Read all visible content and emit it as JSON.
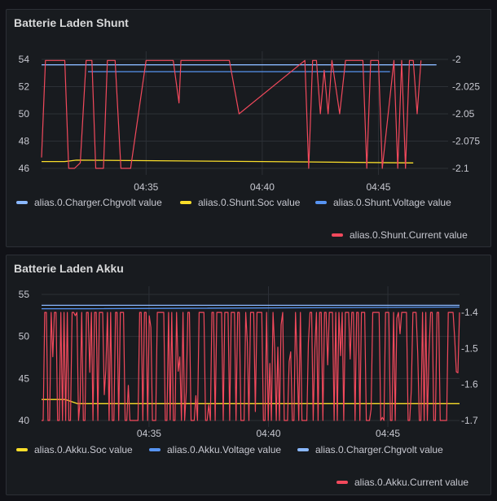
{
  "colors": {
    "light_blue": "#8ab8ff",
    "yellow": "#fade2a",
    "blue": "#5794f2",
    "red": "#f2495c",
    "grid": "#2c3036"
  },
  "panels": [
    {
      "title": "Batterie Laden Shunt",
      "legend": [
        {
          "label": "alias.0.Charger.Chgvolt value",
          "color": "#8ab8ff"
        },
        {
          "label": "alias.0.Shunt.Soc value",
          "color": "#fade2a"
        },
        {
          "label": "alias.0.Shunt.Voltage value",
          "color": "#5794f2"
        },
        {
          "label": "alias.0.Shunt.Current value",
          "color": "#f2495c"
        }
      ]
    },
    {
      "title": "Batterie Laden Akku",
      "legend": [
        {
          "label": "alias.0.Akku.Soc value",
          "color": "#fade2a"
        },
        {
          "label": "alias.0.Akku.Voltage value",
          "color": "#5794f2"
        },
        {
          "label": "alias.0.Charger.Chgvolt value",
          "color": "#8ab8ff"
        },
        {
          "label": "alias.0.Akku.Current value",
          "color": "#f2495c"
        }
      ]
    }
  ],
  "chart_data": [
    {
      "type": "line",
      "title": "Batterie Laden Shunt",
      "x_ticks": [
        "04:35",
        "04:40",
        "04:45"
      ],
      "x_range": [
        "04:30:30",
        "04:48:00"
      ],
      "y_left_ticks": [
        "54",
        "52",
        "50",
        "48",
        "46"
      ],
      "y_left_range": [
        46,
        54
      ],
      "y_right_ticks": [
        "-2",
        "-2.025",
        "-2.05",
        "-2.075",
        "-2.1"
      ],
      "y_right_range": [
        -2.1,
        -2
      ],
      "series": [
        {
          "name": "alias.0.Charger.Chgvolt value",
          "axis": "left",
          "x": [
            "04:30:30",
            "04:46:30",
            "04:47:30"
          ],
          "y": [
            53.6,
            53.6,
            53.6
          ]
        },
        {
          "name": "alias.0.Shunt.Soc value",
          "axis": "left",
          "x": [
            "04:30:30",
            "04:31:30",
            "04:32:00",
            "04:40:00",
            "04:46:30"
          ],
          "y": [
            46.5,
            46.5,
            46.6,
            46.5,
            46.4
          ]
        },
        {
          "name": "alias.0.Shunt.Voltage value",
          "axis": "left",
          "x": [
            "04:32:30",
            "04:36:00",
            "04:40:00",
            "04:43:00",
            "04:45:30"
          ],
          "y": [
            53.1,
            53.1,
            53.1,
            53.1,
            53.1
          ]
        },
        {
          "name": "alias.0.Shunt.Current value",
          "axis": "right",
          "x": [
            "04:30:30",
            "04:30:40",
            "04:31:30",
            "04:31:40",
            "04:31:55",
            "04:32:10",
            "04:32:25",
            "04:32:40",
            "04:32:50",
            "04:33:10",
            "04:33:20",
            "04:33:40",
            "04:33:55",
            "04:34:20",
            "04:35:00",
            "04:35:30",
            "04:36:10",
            "04:36:25",
            "04:36:30",
            "04:37:30",
            "04:37:40",
            "04:38:35",
            "04:39:00",
            "04:41:50",
            "04:42:00",
            "04:42:10",
            "04:42:20",
            "04:42:30",
            "04:42:40",
            "04:42:50",
            "04:43:00",
            "04:43:20",
            "04:43:35",
            "04:43:50",
            "04:44:20",
            "04:44:30",
            "04:44:40",
            "04:45:00",
            "04:45:10",
            "04:45:40",
            "04:45:50",
            "04:46:00",
            "04:46:10",
            "04:46:20",
            "04:46:30",
            "04:46:40",
            "04:46:50"
          ],
          "y": [
            -2.09,
            -2.001,
            -2.001,
            -2.1,
            -2.1,
            -2.095,
            -2.001,
            -2.001,
            -2.1,
            -2.1,
            -2.001,
            -2.001,
            -2.1,
            -2.1,
            -2.001,
            -2.001,
            -2.001,
            -2.04,
            -2.001,
            -2.001,
            -2.001,
            -2.001,
            -2.05,
            -2.001,
            -2.1,
            -2.001,
            -2.001,
            -2.05,
            -2.01,
            -2.05,
            -2.001,
            -2.05,
            -2.001,
            -2.001,
            -2.001,
            -2.1,
            -2.001,
            -2.001,
            -2.1,
            -2.001,
            -2.1,
            -2.001,
            -2.1,
            -2.001,
            -2.001,
            -2.05,
            -2.001
          ]
        }
      ]
    },
    {
      "type": "line",
      "title": "Batterie Laden Akku",
      "x_ticks": [
        "04:35",
        "04:40",
        "04:45"
      ],
      "x_range": [
        "04:30:30",
        "04:48:00"
      ],
      "y_left_ticks": [
        "55",
        "50",
        "45",
        "40"
      ],
      "y_left_range": [
        40,
        55
      ],
      "y_right_ticks": [
        "-1.4",
        "-1.5",
        "-1.6",
        "-1.7"
      ],
      "y_right_range": [
        -1.7,
        -1.35
      ],
      "series": [
        {
          "name": "alias.0.Akku.Soc value",
          "axis": "left",
          "x": [
            "04:30:30",
            "04:31:30",
            "04:32:00",
            "04:48:00"
          ],
          "y": [
            42.5,
            42.5,
            42.0,
            42.0
          ]
        },
        {
          "name": "alias.0.Akku.Voltage value",
          "axis": "left",
          "x": [
            "04:30:30",
            "04:32:30",
            "04:48:00"
          ],
          "y": [
            53.3,
            53.3,
            53.5
          ]
        },
        {
          "name": "alias.0.Charger.Chgvolt value",
          "axis": "left",
          "x": [
            "04:30:30",
            "04:48:00"
          ],
          "y": [
            53.7,
            53.7
          ]
        },
        {
          "name": "alias.0.Akku.Current value",
          "axis": "right",
          "x": [
            "04:30:30",
            "04:48:00"
          ],
          "y_min": -1.7,
          "y_max": -1.4,
          "note_pattern": "rapid oscillation"
        }
      ]
    }
  ]
}
